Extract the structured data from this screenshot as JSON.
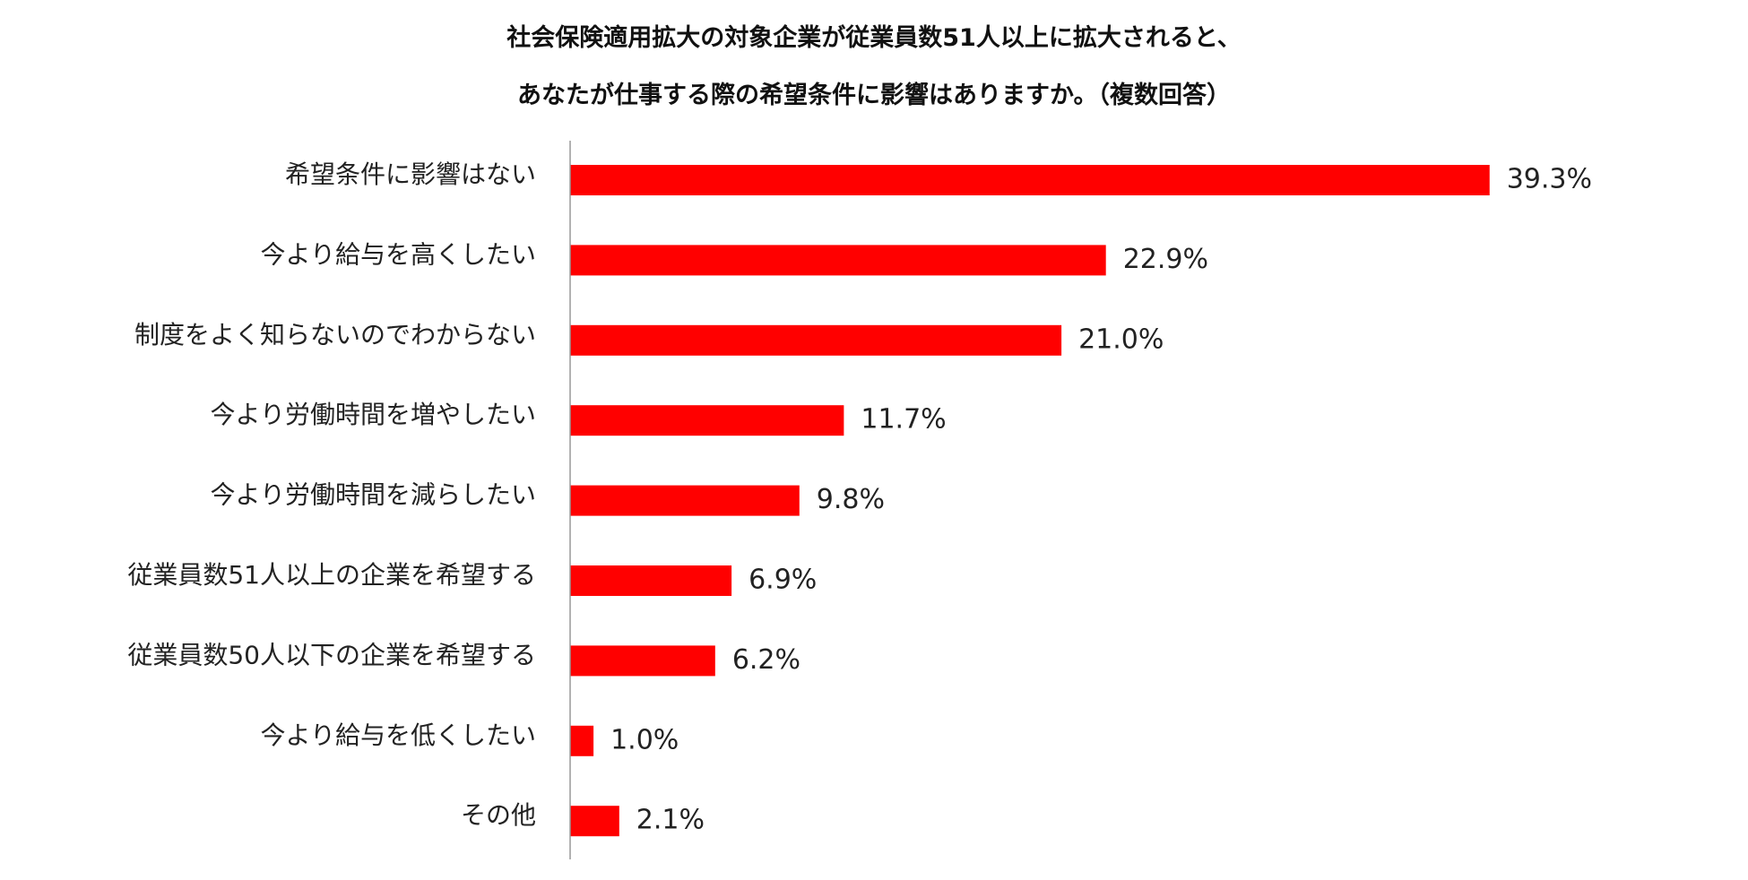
{
  "chart_data": {
    "type": "bar",
    "orientation": "horizontal",
    "title_lines": [
      "社会保険適用拡大の対象企業が従業員数51人以上に拡大されると、",
      "あなたが仕事する際の希望条件に影響はありますか。（複数回答）"
    ],
    "xlabel": "",
    "ylabel": "",
    "categories": [
      "希望条件に影響はない",
      "今より給与を高くしたい",
      "制度をよく知らないのでわからない",
      "今より労働時間を増やしたい",
      "今より労働時間を減らしたい",
      "従業員数51人以上の企業を希望する",
      "従業員数50人以下の企業を希望する",
      "今より給与を低くしたい",
      "その他"
    ],
    "values": [
      39.3,
      22.9,
      21.0,
      11.7,
      9.8,
      6.9,
      6.2,
      1.0,
      2.1
    ],
    "value_labels": [
      "39.3%",
      "22.9%",
      "21.0%",
      "11.7%",
      "9.8%",
      "6.9%",
      "6.2%",
      "1.0%",
      "2.1%"
    ],
    "xlim": [
      0,
      40
    ],
    "grid": false,
    "legend": "none",
    "bar_color": "#ff0000",
    "axis_color": "#999999"
  }
}
